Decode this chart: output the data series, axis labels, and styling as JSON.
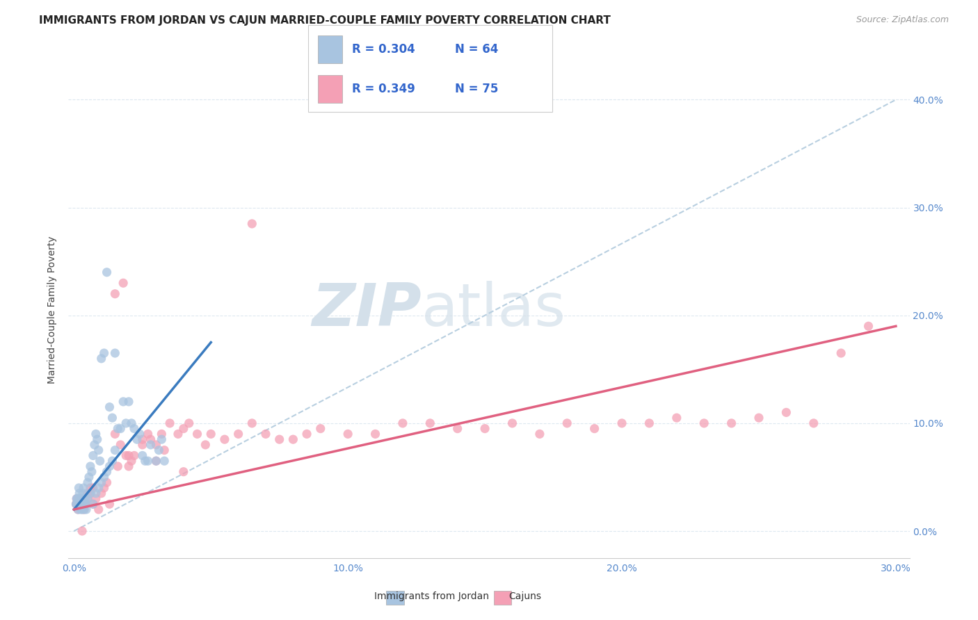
{
  "title": "IMMIGRANTS FROM JORDAN VS CAJUN MARRIED-COUPLE FAMILY POVERTY CORRELATION CHART",
  "source": "Source: ZipAtlas.com",
  "xlim": [
    -0.002,
    0.305
  ],
  "ylim": [
    -0.025,
    0.435
  ],
  "x_tick_vals": [
    0.0,
    0.1,
    0.2,
    0.3
  ],
  "y_tick_vals": [
    0.0,
    0.1,
    0.2,
    0.3,
    0.4
  ],
  "ylabel": "Married-Couple Family Poverty",
  "legend_labels": [
    "Immigrants from Jordan",
    "Cajuns"
  ],
  "r_jordan": 0.304,
  "n_jordan": 64,
  "r_cajun": 0.349,
  "n_cajun": 75,
  "blue_scatter_color": "#a8c4e0",
  "pink_scatter_color": "#f4a0b5",
  "blue_line_color": "#3a7bbf",
  "pink_line_color": "#e06080",
  "dashed_line_color": "#b8cfe0",
  "watermark_color": "#d4e0ea",
  "grid_color": "#dde8f0",
  "title_fontsize": 11,
  "source_fontsize": 9,
  "tick_color": "#5588cc",
  "legend_r_n_color": "#3366cc",
  "jordan_x": [
    0.0008,
    0.0012,
    0.0015,
    0.0018,
    0.002,
    0.0022,
    0.0025,
    0.0028,
    0.003,
    0.0032,
    0.0035,
    0.0038,
    0.004,
    0.0042,
    0.0045,
    0.005,
    0.0055,
    0.006,
    0.0065,
    0.007,
    0.0075,
    0.008,
    0.0085,
    0.009,
    0.0095,
    0.01,
    0.011,
    0.012,
    0.013,
    0.014,
    0.015,
    0.016,
    0.017,
    0.018,
    0.019,
    0.02,
    0.021,
    0.022,
    0.023,
    0.024,
    0.025,
    0.026,
    0.027,
    0.028,
    0.03,
    0.031,
    0.032,
    0.033,
    0.001,
    0.001,
    0.002,
    0.003,
    0.004,
    0.005,
    0.006,
    0.007,
    0.008,
    0.009,
    0.01,
    0.011,
    0.012,
    0.013,
    0.014,
    0.015
  ],
  "jordan_y": [
    0.025,
    0.03,
    0.02,
    0.04,
    0.035,
    0.03,
    0.02,
    0.025,
    0.03,
    0.035,
    0.04,
    0.02,
    0.03,
    0.025,
    0.02,
    0.045,
    0.05,
    0.06,
    0.055,
    0.07,
    0.08,
    0.09,
    0.085,
    0.075,
    0.065,
    0.16,
    0.165,
    0.24,
    0.115,
    0.105,
    0.165,
    0.095,
    0.095,
    0.12,
    0.1,
    0.12,
    0.1,
    0.095,
    0.085,
    0.09,
    0.07,
    0.065,
    0.065,
    0.08,
    0.065,
    0.075,
    0.085,
    0.065,
    0.025,
    0.03,
    0.025,
    0.02,
    0.025,
    0.03,
    0.035,
    0.025,
    0.035,
    0.04,
    0.045,
    0.05,
    0.055,
    0.06,
    0.065,
    0.075
  ],
  "cajun_x": [
    0.0008,
    0.001,
    0.0015,
    0.002,
    0.0025,
    0.003,
    0.0035,
    0.004,
    0.005,
    0.006,
    0.007,
    0.008,
    0.009,
    0.01,
    0.011,
    0.012,
    0.013,
    0.015,
    0.016,
    0.017,
    0.018,
    0.019,
    0.02,
    0.021,
    0.022,
    0.025,
    0.027,
    0.028,
    0.03,
    0.032,
    0.033,
    0.035,
    0.038,
    0.04,
    0.042,
    0.045,
    0.048,
    0.05,
    0.055,
    0.06,
    0.065,
    0.07,
    0.075,
    0.08,
    0.085,
    0.09,
    0.1,
    0.11,
    0.12,
    0.13,
    0.14,
    0.15,
    0.16,
    0.17,
    0.18,
    0.19,
    0.2,
    0.21,
    0.22,
    0.23,
    0.24,
    0.25,
    0.26,
    0.27,
    0.28,
    0.29,
    0.005,
    0.006,
    0.007,
    0.015,
    0.02,
    0.025,
    0.03,
    0.04,
    0.065
  ],
  "cajun_y": [
    0.025,
    0.03,
    0.02,
    0.025,
    0.03,
    0.0,
    0.02,
    0.025,
    0.03,
    0.035,
    0.025,
    0.03,
    0.02,
    0.035,
    0.04,
    0.045,
    0.025,
    0.22,
    0.06,
    0.08,
    0.23,
    0.07,
    0.06,
    0.065,
    0.07,
    0.08,
    0.09,
    0.085,
    0.08,
    0.09,
    0.075,
    0.1,
    0.09,
    0.095,
    0.1,
    0.09,
    0.08,
    0.09,
    0.085,
    0.09,
    0.1,
    0.09,
    0.085,
    0.085,
    0.09,
    0.095,
    0.09,
    0.09,
    0.1,
    0.1,
    0.095,
    0.095,
    0.1,
    0.09,
    0.1,
    0.095,
    0.1,
    0.1,
    0.105,
    0.1,
    0.1,
    0.105,
    0.11,
    0.1,
    0.165,
    0.19,
    0.035,
    0.04,
    0.04,
    0.09,
    0.07,
    0.085,
    0.065,
    0.055,
    0.285
  ],
  "blue_line_x": [
    0.0,
    0.05
  ],
  "blue_line_y": [
    0.02,
    0.175
  ],
  "pink_line_x": [
    0.0,
    0.3
  ],
  "pink_line_y": [
    0.02,
    0.19
  ],
  "diag_line_x": [
    0.0,
    0.3
  ],
  "diag_line_y": [
    0.0,
    0.4
  ]
}
